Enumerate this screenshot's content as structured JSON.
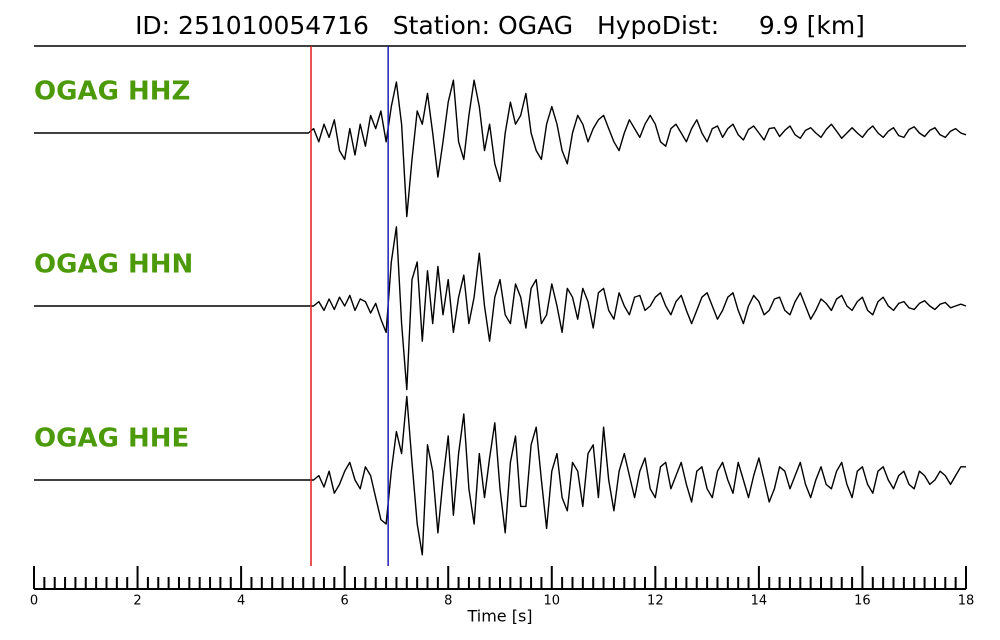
{
  "chart_data": {
    "type": "seismogram",
    "title": "ID: 251010054716   Station: OGAG   HypoDist:     9.9 [km]",
    "xlabel": "Time [s]",
    "xlim": [
      0,
      18
    ],
    "xticks": [
      0,
      2,
      4,
      6,
      8,
      10,
      12,
      14,
      16,
      18
    ],
    "minor_xticks": [
      0.2,
      0.4,
      0.6,
      0.8,
      1,
      1.2,
      1.4,
      1.6,
      1.8,
      2.2,
      2.4,
      2.6,
      2.8,
      3,
      3.2,
      3.4,
      3.6,
      3.8,
      4.2,
      4.4,
      4.6,
      4.8,
      5,
      5.2,
      5.4,
      5.6,
      5.8,
      6.2,
      6.4,
      6.6,
      6.8,
      7,
      7.2,
      7.4,
      7.6,
      7.8,
      8.2,
      8.4,
      8.6,
      8.8,
      9,
      9.2,
      9.4,
      9.6,
      9.8,
      10.2,
      10.4,
      10.6,
      10.8,
      11,
      11.2,
      11.4,
      11.6,
      11.8,
      12.2,
      12.4,
      12.6,
      12.8,
      13,
      13.2,
      13.4,
      13.6,
      13.8,
      14.2,
      14.4,
      14.6,
      14.8,
      15,
      15.2,
      15.4,
      15.6,
      15.8,
      16.2,
      16.4,
      16.6,
      16.8,
      17,
      17.2,
      17.4,
      17.6,
      17.8
    ],
    "label_color": "#4c9a0a",
    "markers": [
      {
        "time": 5.35,
        "color": "#e41a1c"
      },
      {
        "time": 6.84,
        "color": "#1f1fb4"
      }
    ],
    "ylim": [
      -1,
      1
    ],
    "x": [
      0,
      5.3,
      5.4,
      5.5,
      5.6,
      5.7,
      5.8,
      5.9,
      6,
      6.1,
      6.2,
      6.3,
      6.4,
      6.5,
      6.6,
      6.7,
      6.8,
      6.9,
      7,
      7.1,
      7.2,
      7.3,
      7.4,
      7.5,
      7.6,
      7.7,
      7.8,
      7.9,
      8,
      8.1,
      8.2,
      8.3,
      8.4,
      8.5,
      8.6,
      8.7,
      8.8,
      8.9,
      9,
      9.1,
      9.2,
      9.3,
      9.4,
      9.5,
      9.6,
      9.7,
      9.8,
      9.9,
      10,
      10.1,
      10.2,
      10.3,
      10.4,
      10.5,
      10.6,
      10.7,
      10.8,
      10.9,
      11,
      11.1,
      11.2,
      11.3,
      11.4,
      11.5,
      11.6,
      11.7,
      11.8,
      11.9,
      12,
      12.1,
      12.2,
      12.3,
      12.4,
      12.5,
      12.6,
      12.7,
      12.8,
      12.9,
      13,
      13.1,
      13.2,
      13.3,
      13.4,
      13.5,
      13.6,
      13.7,
      13.8,
      13.9,
      14,
      14.1,
      14.2,
      14.3,
      14.4,
      14.5,
      14.6,
      14.7,
      14.8,
      14.9,
      15,
      15.1,
      15.2,
      15.3,
      15.4,
      15.5,
      15.6,
      15.7,
      15.8,
      15.9,
      16,
      16.1,
      16.2,
      16.3,
      16.4,
      16.5,
      16.6,
      16.7,
      16.8,
      16.9,
      17,
      17.1,
      17.2,
      17.3,
      17.4,
      17.5,
      17.6,
      17.7,
      17.8,
      17.9,
      18
    ],
    "series": [
      {
        "name": "OGAG HHZ",
        "color": "#000000",
        "values": [
          0,
          0,
          0.05,
          -0.1,
          0.1,
          -0.05,
          0.15,
          -0.2,
          -0.3,
          0.05,
          -0.25,
          0.1,
          -0.15,
          0.2,
          0.05,
          0.25,
          -0.1,
          0.3,
          0.58,
          0.1,
          -0.95,
          -0.3,
          0.25,
          0.1,
          0.45,
          0.0,
          -0.5,
          -0.1,
          0.35,
          0.6,
          -0.1,
          -0.3,
          0.2,
          0.6,
          0.3,
          -0.2,
          0.1,
          -0.35,
          -0.55,
          0.0,
          0.35,
          0.1,
          0.2,
          0.45,
          0.0,
          -0.2,
          -0.3,
          0.1,
          0.3,
          0.1,
          -0.2,
          -0.35,
          0.0,
          0.2,
          0.1,
          -0.1,
          0.05,
          0.15,
          0.2,
          0.05,
          -0.1,
          -0.2,
          0.0,
          0.15,
          0.05,
          -0.05,
          0.1,
          0.2,
          0.1,
          -0.1,
          -0.15,
          0.05,
          0.1,
          0.0,
          -0.1,
          0.05,
          0.15,
          0.0,
          -0.1,
          0.05,
          0.08,
          -0.05,
          0.05,
          0.1,
          -0.02,
          -0.08,
          0.04,
          0.08,
          0.0,
          -0.08,
          0.05,
          0.06,
          -0.04,
          0.03,
          0.08,
          -0.02,
          -0.06,
          0.03,
          0.06,
          0.0,
          -0.05,
          0.04,
          0.1,
          0.02,
          -0.06,
          0.0,
          0.06,
          0.0,
          -0.05,
          0.03,
          0.08,
          0.0,
          -0.05,
          0.02,
          0.06,
          -0.03,
          -0.05,
          0.04,
          0.07,
          0.0,
          -0.04,
          0.03,
          0.06,
          -0.02,
          -0.05,
          0.02,
          0.05,
          0.0,
          -0.02
        ]
      },
      {
        "name": "OGAG HHN",
        "color": "#000000",
        "values": [
          0,
          0,
          0.0,
          0.05,
          -0.05,
          0.08,
          -0.04,
          0.1,
          0.0,
          0.12,
          -0.05,
          0.08,
          0.05,
          -0.08,
          0.03,
          -0.15,
          -0.3,
          0.5,
          0.9,
          -0.2,
          -0.95,
          0.3,
          0.5,
          -0.4,
          0.4,
          -0.2,
          0.45,
          -0.1,
          0.3,
          -0.3,
          0.1,
          0.35,
          -0.2,
          0.1,
          0.6,
          0.0,
          -0.4,
          0.1,
          0.3,
          -0.1,
          -0.2,
          0.25,
          0.1,
          -0.25,
          0.2,
          0.3,
          -0.2,
          -0.1,
          0.25,
          0.0,
          -0.3,
          0.2,
          0.1,
          -0.15,
          0.2,
          0.05,
          -0.25,
          0.15,
          0.2,
          -0.05,
          -0.15,
          0.15,
          0.0,
          -0.1,
          0.1,
          0.12,
          -0.05,
          0.0,
          0.1,
          0.15,
          0.0,
          -0.1,
          0.05,
          0.12,
          -0.05,
          -0.2,
          -0.05,
          0.1,
          0.15,
          0.0,
          -0.15,
          -0.05,
          0.1,
          0.15,
          -0.05,
          -0.2,
          0.0,
          0.12,
          0.05,
          -0.1,
          -0.05,
          0.08,
          0.1,
          -0.05,
          -0.1,
          0.05,
          0.15,
          0.0,
          -0.15,
          -0.05,
          0.08,
          0.03,
          -0.05,
          0.08,
          0.12,
          0.0,
          -0.05,
          0.05,
          0.1,
          -0.05,
          -0.1,
          0.05,
          0.1,
          0.0,
          -0.05,
          0.03,
          0.05,
          -0.02,
          -0.04,
          0.03,
          0.06,
          0.0,
          -0.04,
          0.02,
          0.04,
          -0.02,
          0.0,
          0.02,
          0.0
        ]
      },
      {
        "name": "OGAG HHE",
        "color": "#000000",
        "values": [
          0,
          0,
          0.0,
          0.05,
          -0.08,
          0.1,
          -0.15,
          -0.05,
          0.1,
          0.2,
          0.0,
          -0.1,
          0.15,
          0.05,
          -0.2,
          -0.45,
          -0.5,
          0.1,
          0.55,
          0.3,
          0.95,
          0.2,
          -0.5,
          -0.85,
          0.4,
          0.1,
          -0.6,
          0.0,
          0.5,
          -0.4,
          0.3,
          0.75,
          -0.1,
          -0.5,
          0.3,
          -0.2,
          0.25,
          0.65,
          -0.1,
          -0.6,
          0.2,
          0.5,
          -0.3,
          -0.3,
          0.4,
          0.6,
          0.0,
          -0.55,
          0.1,
          0.3,
          -0.2,
          -0.35,
          0.2,
          0.1,
          -0.3,
          0.3,
          0.4,
          -0.2,
          0.6,
          0.0,
          -0.35,
          0.1,
          0.3,
          0.05,
          -0.2,
          0.1,
          0.25,
          -0.1,
          -0.2,
          0.15,
          0.2,
          -0.1,
          0.05,
          0.2,
          -0.05,
          -0.25,
          0.1,
          0.15,
          -0.1,
          -0.2,
          0.1,
          0.2,
          0.0,
          -0.15,
          0.2,
          0.0,
          -0.2,
          0.05,
          0.25,
          0.0,
          -0.25,
          -0.1,
          0.15,
          0.1,
          -0.1,
          0.05,
          0.2,
          -0.05,
          -0.2,
          0.0,
          0.15,
          -0.05,
          -0.1,
          0.1,
          0.2,
          -0.05,
          -0.2,
          0.1,
          0.15,
          -0.05,
          -0.15,
          0.1,
          0.15,
          0.0,
          -0.1,
          0.05,
          0.1,
          -0.05,
          -0.1,
          0.1,
          0.05,
          -0.05,
          0.0,
          0.1,
          0.05,
          -0.05,
          0.05,
          0.15,
          0.15
        ]
      }
    ]
  }
}
